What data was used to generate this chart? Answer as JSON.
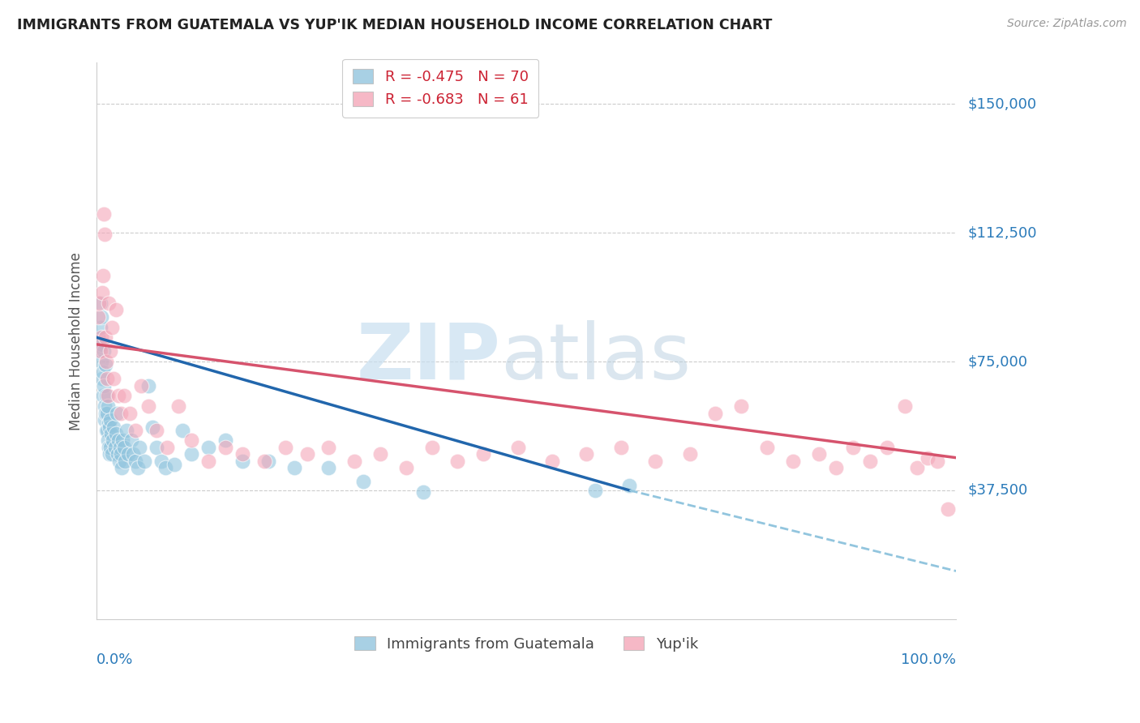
{
  "title": "IMMIGRANTS FROM GUATEMALA VS YUP'IK MEDIAN HOUSEHOLD INCOME CORRELATION CHART",
  "source": "Source: ZipAtlas.com",
  "ylabel": "Median Household Income",
  "yticks": [
    0,
    37500,
    75000,
    112500,
    150000
  ],
  "ytick_labels": [
    "",
    "$37,500",
    "$75,000",
    "$112,500",
    "$150,000"
  ],
  "ylim": [
    0,
    162000
  ],
  "xlim": [
    0,
    1.0
  ],
  "legend1_R": "-0.475",
  "legend1_N": "70",
  "legend2_R": "-0.683",
  "legend2_N": "61",
  "color_blue": "#92c5de",
  "color_pink": "#f4a6b8",
  "blue_scatter_x": [
    0.002,
    0.003,
    0.004,
    0.004,
    0.005,
    0.005,
    0.006,
    0.006,
    0.007,
    0.007,
    0.008,
    0.008,
    0.009,
    0.009,
    0.01,
    0.01,
    0.011,
    0.011,
    0.012,
    0.012,
    0.013,
    0.013,
    0.014,
    0.014,
    0.015,
    0.015,
    0.016,
    0.016,
    0.017,
    0.018,
    0.019,
    0.02,
    0.021,
    0.022,
    0.023,
    0.024,
    0.025,
    0.026,
    0.027,
    0.028,
    0.029,
    0.03,
    0.032,
    0.033,
    0.035,
    0.037,
    0.04,
    0.042,
    0.045,
    0.048,
    0.05,
    0.055,
    0.06,
    0.065,
    0.07,
    0.075,
    0.08,
    0.09,
    0.1,
    0.11,
    0.13,
    0.15,
    0.17,
    0.2,
    0.23,
    0.27,
    0.31,
    0.38,
    0.58,
    0.62
  ],
  "blue_scatter_y": [
    82000,
    78000,
    85000,
    92000,
    75000,
    88000,
    80000,
    70000,
    72000,
    65000,
    78000,
    68000,
    62000,
    58000,
    74000,
    60000,
    65000,
    55000,
    60000,
    55000,
    52000,
    62000,
    57000,
    50000,
    56000,
    48000,
    58000,
    50000,
    54000,
    48000,
    52000,
    56000,
    50000,
    54000,
    60000,
    48000,
    52000,
    46000,
    50000,
    48000,
    44000,
    52000,
    50000,
    46000,
    55000,
    48000,
    52000,
    48000,
    46000,
    44000,
    50000,
    46000,
    68000,
    56000,
    50000,
    46000,
    44000,
    45000,
    55000,
    48000,
    50000,
    52000,
    46000,
    46000,
    44000,
    44000,
    40000,
    37000,
    37500,
    39000
  ],
  "pink_scatter_x": [
    0.002,
    0.003,
    0.004,
    0.005,
    0.006,
    0.007,
    0.008,
    0.009,
    0.01,
    0.011,
    0.012,
    0.013,
    0.014,
    0.016,
    0.018,
    0.02,
    0.022,
    0.025,
    0.028,
    0.032,
    0.038,
    0.045,
    0.052,
    0.06,
    0.07,
    0.082,
    0.095,
    0.11,
    0.13,
    0.15,
    0.17,
    0.195,
    0.22,
    0.245,
    0.27,
    0.3,
    0.33,
    0.36,
    0.39,
    0.42,
    0.45,
    0.49,
    0.53,
    0.57,
    0.61,
    0.65,
    0.69,
    0.72,
    0.75,
    0.78,
    0.81,
    0.84,
    0.86,
    0.88,
    0.9,
    0.92,
    0.94,
    0.955,
    0.967,
    0.978,
    0.99
  ],
  "pink_scatter_y": [
    88000,
    92000,
    78000,
    82000,
    95000,
    100000,
    118000,
    112000,
    82000,
    75000,
    70000,
    65000,
    92000,
    78000,
    85000,
    70000,
    90000,
    65000,
    60000,
    65000,
    60000,
    55000,
    68000,
    62000,
    55000,
    50000,
    62000,
    52000,
    46000,
    50000,
    48000,
    46000,
    50000,
    48000,
    50000,
    46000,
    48000,
    44000,
    50000,
    46000,
    48000,
    50000,
    46000,
    48000,
    50000,
    46000,
    48000,
    60000,
    62000,
    50000,
    46000,
    48000,
    44000,
    50000,
    46000,
    50000,
    62000,
    44000,
    47000,
    46000,
    32000
  ]
}
